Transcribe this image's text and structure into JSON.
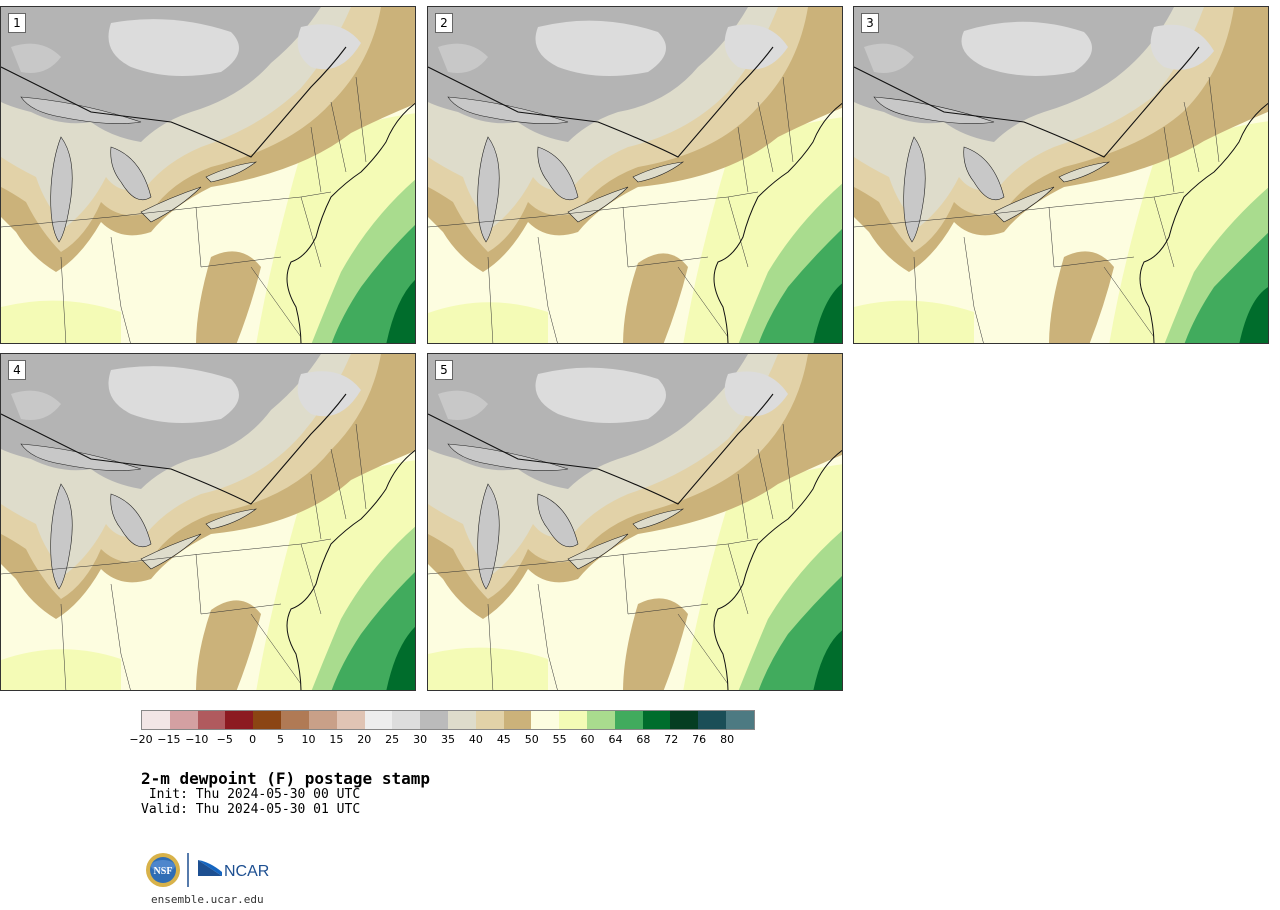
{
  "panels": [
    {
      "label": "1"
    },
    {
      "label": "2"
    },
    {
      "label": "3"
    },
    {
      "label": "4"
    },
    {
      "label": "5"
    }
  ],
  "colorbar": {
    "colors": [
      "#f2e6e6",
      "#d4a0a2",
      "#b05a5e",
      "#8c1a20",
      "#8b4513",
      "#b07a55",
      "#c9a088",
      "#e0c4b4",
      "#eeeeee",
      "#dddddd",
      "#bbbbbb",
      "#dedccb",
      "#e2d2a8",
      "#cbb27a",
      "#fdfde0",
      "#f4fbb6",
      "#a9dc8e",
      "#41ab5d",
      "#006d2c",
      "#053d22",
      "#1b4e57",
      "#4d7a82"
    ],
    "ticks": [
      "−20",
      "−15",
      "−10",
      "−5",
      "0",
      "5",
      "10",
      "15",
      "20",
      "25",
      "30",
      "35",
      "40",
      "45",
      "50",
      "55",
      "60",
      "64",
      "68",
      "72",
      "76",
      "80"
    ]
  },
  "title": "2-m dewpoint (F) postage stamp",
  "init_line": " Init: Thu 2024-05-30 00 UTC",
  "valid_line": "Valid: Thu 2024-05-30 01 UTC",
  "logos": {
    "nsf": "NSF",
    "ncar": "NCAR"
  },
  "site": "ensemble.ucar.edu",
  "map_colors": {
    "gray_dark": "#b4b4b4",
    "gray_mid": "#c8c8c8",
    "gray_light": "#dcdcdc",
    "beige": "#dedccb",
    "tan_light": "#e2d2a8",
    "tan": "#cbb27a",
    "cream": "#fdfde0",
    "yellow": "#f4fbb6",
    "green_light": "#a9dc8e",
    "green": "#41ab5d",
    "green_dark": "#006d2c"
  }
}
